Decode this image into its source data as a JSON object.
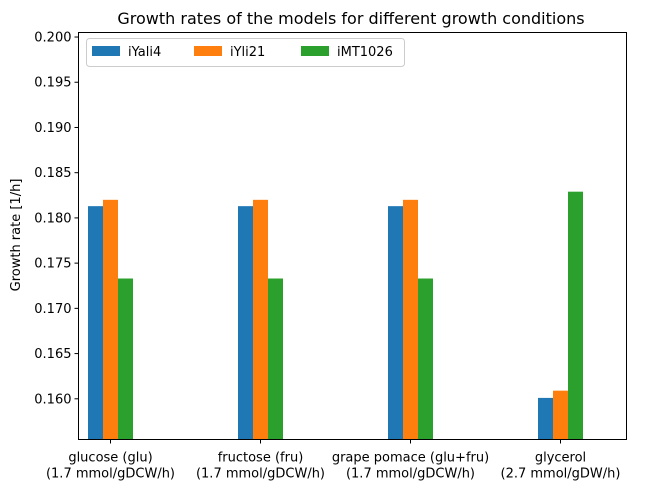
{
  "chart_data": {
    "type": "bar",
    "title": "Growth rates of the models for different growth conditions",
    "xlabel": "",
    "ylabel": "Growth rate [1/h]",
    "ylim": [
      0.1555,
      0.2005
    ],
    "yticks": [
      0.16,
      0.165,
      0.17,
      0.175,
      0.18,
      0.185,
      0.19,
      0.195,
      0.2
    ],
    "ytick_labels": [
      "0.160",
      "0.165",
      "0.170",
      "0.175",
      "0.180",
      "0.185",
      "0.190",
      "0.195",
      "0.200"
    ],
    "categories": [
      [
        "glucose (glu)",
        "(1.7 mmol/gDCW/h)"
      ],
      [
        "fructose (fru)",
        "(1.7 mmol/gDCW/h)"
      ],
      [
        "grape pomace (glu+fru)",
        "(1.7 mmol/gDCW/h)"
      ],
      [
        "glycerol",
        "(2.7 mmol/gDW/h)"
      ]
    ],
    "series": [
      {
        "name": "iYali4",
        "color": "#1f77b4",
        "values": [
          0.1813,
          0.1813,
          0.1813,
          0.1601
        ]
      },
      {
        "name": "iYli21",
        "color": "#ff7f0e",
        "values": [
          0.182,
          0.182,
          0.182,
          0.1609
        ]
      },
      {
        "name": "iMT1026",
        "color": "#2ca02c",
        "values": [
          0.1733,
          0.1733,
          0.1733,
          0.1829
        ]
      }
    ],
    "legend_position": "top-left",
    "legend_columns": 3,
    "grid": false
  }
}
